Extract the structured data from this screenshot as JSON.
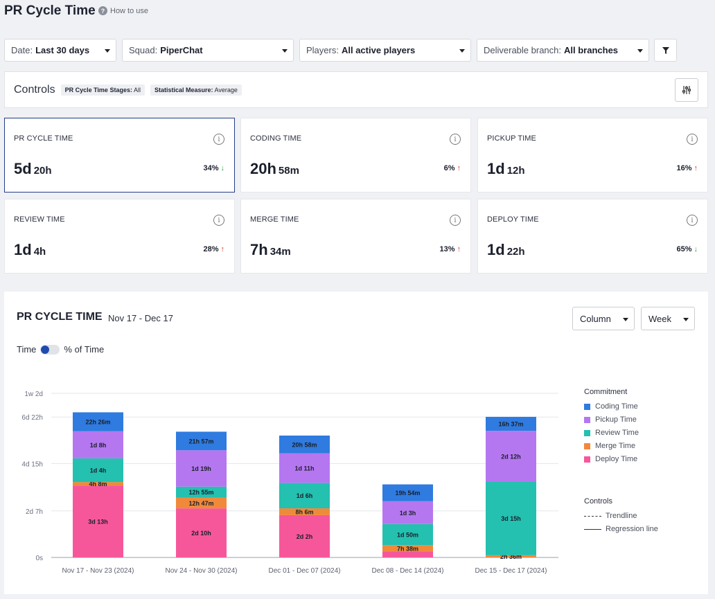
{
  "header": {
    "title": "PR Cycle Time",
    "how_to": "How to use"
  },
  "filters": [
    {
      "key": "Date:",
      "value": "Last 30 days"
    },
    {
      "key": "Squad:",
      "value": "PiperChat"
    },
    {
      "key": "Players:",
      "value": "All active players"
    },
    {
      "key": "Deliverable branch:",
      "value": "All branches"
    }
  ],
  "controls": {
    "title": "Controls",
    "stages_key": "PR Cycle Time Stages:",
    "stages_value": "All",
    "measure_key": "Statistical Measure:",
    "measure_value": "Average"
  },
  "metrics": [
    {
      "label": "PR CYCLE TIME",
      "big": "5d",
      "small": "20h",
      "pct": "34%",
      "trend": "down"
    },
    {
      "label": "CODING TIME",
      "big": "20h",
      "small": "58m",
      "pct": "6%",
      "trend": "up"
    },
    {
      "label": "PICKUP TIME",
      "big": "1d",
      "small": "12h",
      "pct": "16%",
      "trend": "up"
    },
    {
      "label": "REVIEW TIME",
      "big": "1d",
      "small": "4h",
      "pct": "28%",
      "trend": "up"
    },
    {
      "label": "MERGE TIME",
      "big": "7h",
      "small": "34m",
      "pct": "13%",
      "trend": "up"
    },
    {
      "label": "DEPLOY TIME",
      "big": "1d",
      "small": "22h",
      "pct": "65%",
      "trend": "down"
    }
  ],
  "arrows": {
    "up": "↑",
    "down": "↓"
  },
  "chart_panel": {
    "title": "PR CYCLE TIME",
    "range": "Nov 17 - Dec 17",
    "view": "Column",
    "granularity": "Week",
    "toggle_left": "Time",
    "toggle_right": "% of Time"
  },
  "legend": {
    "commitment_title": "Commitment",
    "controls_title": "Controls",
    "trendline": "Trendline",
    "regression": "Regression line"
  },
  "chart_data": {
    "type": "bar",
    "stacked": true,
    "y_unit": "hours",
    "ylim": [
      0,
      194
    ],
    "yticks": [
      {
        "value": 0,
        "label": "0s"
      },
      {
        "value": 55,
        "label": "2d 7h"
      },
      {
        "value": 111,
        "label": "4d 15h"
      },
      {
        "value": 166,
        "label": "6d 22h"
      },
      {
        "value": 194,
        "label": "1w 2d"
      }
    ],
    "categories": [
      "Nov 17 - Nov 23 (2024)",
      "Nov 24 - Nov 30 (2024)",
      "Dec 01 - Dec 07 (2024)",
      "Dec 08 - Dec 14 (2024)",
      "Dec 15 - Dec 17 (2024)"
    ],
    "series": [
      {
        "name": "Deploy Time",
        "color": "#f6579b",
        "values": [
          85,
          58,
          50,
          7,
          0
        ],
        "labels": [
          "3d 13h",
          "2d 10h",
          "2d 2h",
          "",
          ""
        ]
      },
      {
        "name": "Merge Time",
        "color": "#f08a3a",
        "values": [
          4.13,
          12.78,
          8.1,
          7.63,
          2.6
        ],
        "labels": [
          "4h 8m",
          "12h 47m",
          "8h 6m",
          "7h 38m",
          "2h 36m"
        ]
      },
      {
        "name": "Review Time",
        "color": "#24c0b0",
        "values": [
          28,
          12.92,
          30,
          24.83,
          87
        ],
        "labels": [
          "1d 4h",
          "12h 55m",
          "1d 6h",
          "1d 50m",
          "3d 15h"
        ]
      },
      {
        "name": "Pickup Time",
        "color": "#b577f0",
        "values": [
          32,
          43,
          35,
          27,
          60
        ],
        "labels": [
          "1d 8h",
          "1d 19h",
          "1d 11h",
          "1d 3h",
          "2d 12h"
        ]
      },
      {
        "name": "Coding Time",
        "color": "#2f7be0",
        "values": [
          22.43,
          21.95,
          20.97,
          19.9,
          16.62
        ],
        "labels": [
          "22h 26m",
          "21h 57m",
          "20h 58m",
          "19h 54m",
          "16h 37m"
        ]
      }
    ],
    "legend_order": [
      "Coding Time",
      "Pickup Time",
      "Review Time",
      "Merge Time",
      "Deploy Time"
    ]
  }
}
